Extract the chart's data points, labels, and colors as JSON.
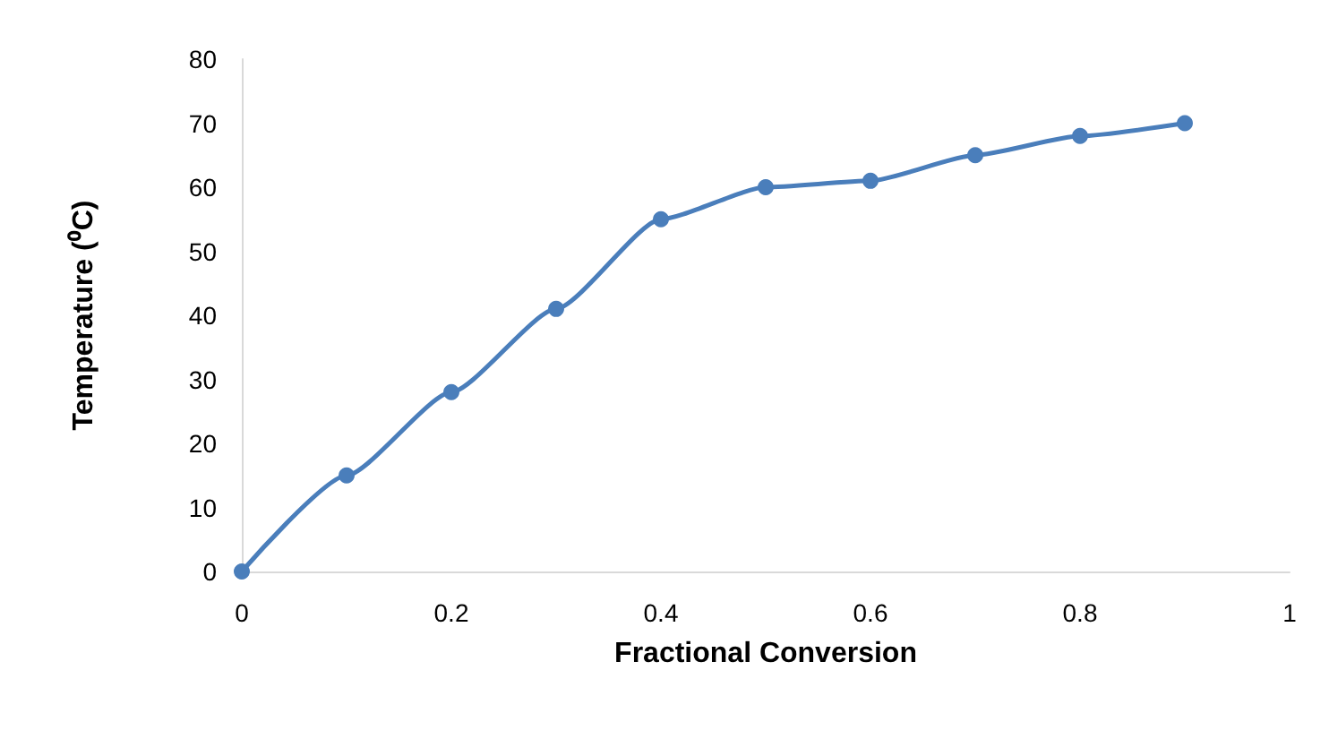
{
  "chart_data": {
    "type": "line",
    "xlabel": "Fractional Conversion",
    "ylabel": "Temperature (⁰C)",
    "x": [
      0,
      0.1,
      0.2,
      0.3,
      0.4,
      0.5,
      0.6,
      0.7,
      0.8,
      0.9
    ],
    "series": [
      {
        "color": "#4a7ebb",
        "values": [
          0,
          15,
          28,
          41,
          55,
          60,
          61,
          65,
          68,
          70
        ]
      }
    ],
    "xlim": [
      0,
      1
    ],
    "xticks": [
      0,
      0.2,
      0.4,
      0.6,
      0.8,
      1
    ],
    "ylim": [
      0,
      80
    ],
    "yticks": [
      0,
      10,
      20,
      30,
      40,
      50,
      60,
      70,
      80
    ],
    "grid": false,
    "marker": "circle",
    "line_style": "solid"
  }
}
